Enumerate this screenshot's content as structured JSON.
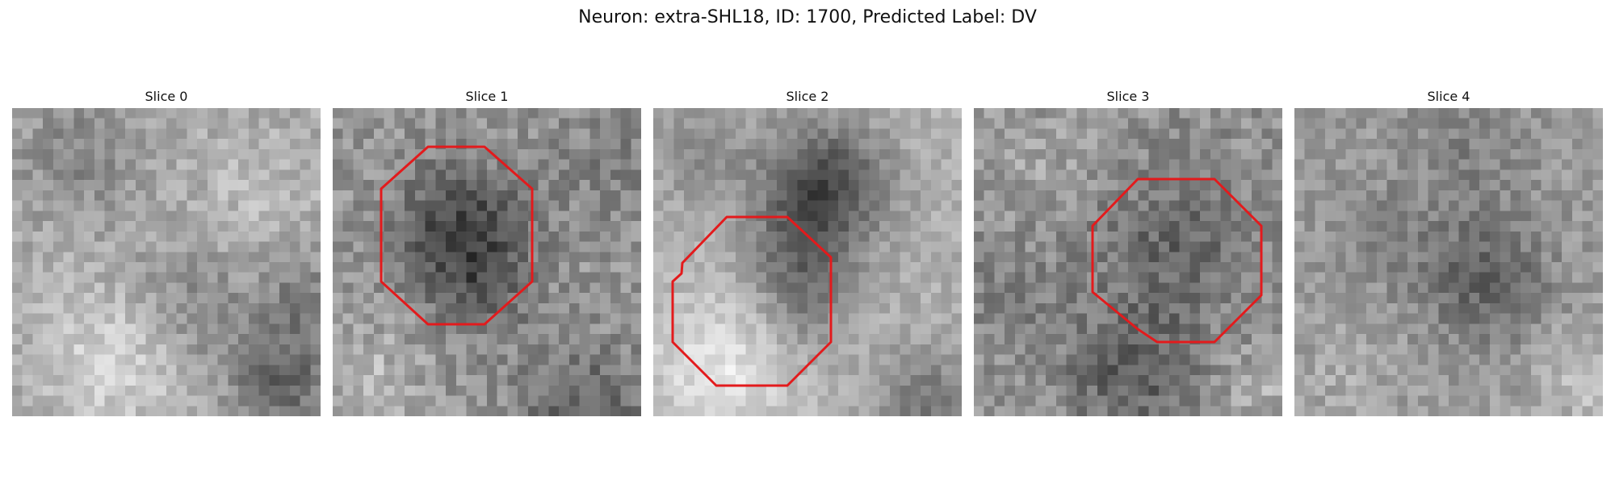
{
  "figure": {
    "title": "Neuron: extra-SHL18, ID: 1700, Predicted Label: DV"
  },
  "panels": [
    {
      "title": "Slice 0",
      "has_outline": false
    },
    {
      "title": "Slice 1",
      "has_outline": true
    },
    {
      "title": "Slice 2",
      "has_outline": true
    },
    {
      "title": "Slice 3",
      "has_outline": true
    },
    {
      "title": "Slice 4",
      "has_outline": false
    }
  ],
  "colors": {
    "outline": "#e31a1c",
    "colormap": "grayscale"
  }
}
